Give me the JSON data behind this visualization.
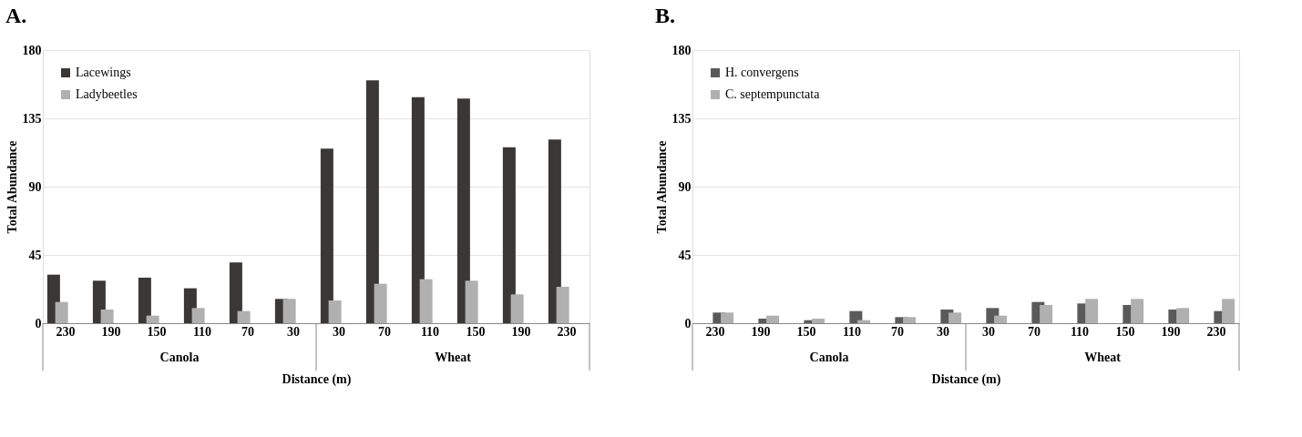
{
  "chart_data": [
    {
      "type": "bar",
      "title": "A.",
      "xlabel": "Distance (m)",
      "ylabel": "Total Abundance",
      "categories": [
        "230",
        "190",
        "150",
        "110",
        "70",
        "30",
        "30",
        "70",
        "110",
        "150",
        "190",
        "230"
      ],
      "annotations": [
        "Canola",
        "Wheat"
      ],
      "series": [
        {
          "name": "Lacewings",
          "color": "#3a3836",
          "values": [
            32,
            28,
            30,
            23,
            40,
            16,
            115,
            160,
            149,
            148,
            116,
            121
          ]
        },
        {
          "name": "Ladybeetles",
          "color": "#b0b0b0",
          "values": [
            14,
            9,
            5,
            10,
            8,
            16,
            15,
            26,
            29,
            28,
            19,
            24
          ]
        }
      ],
      "ylim": [
        0,
        180
      ],
      "yticks": [
        0,
        45,
        90,
        135,
        180
      ],
      "grid": "y",
      "legend": "top left"
    },
    {
      "type": "bar",
      "title": "B.",
      "xlabel": "Distance (m)",
      "ylabel": "Total Abundance",
      "categories": [
        "230",
        "190",
        "150",
        "110",
        "70",
        "30",
        "30",
        "70",
        "110",
        "150",
        "190",
        "230"
      ],
      "annotations": [
        "Canola",
        "Wheat"
      ],
      "series": [
        {
          "name": "H. convergens",
          "color": "#5a5a5a",
          "values": [
            7,
            3,
            2,
            8,
            4,
            9,
            10,
            14,
            13,
            12,
            9,
            8
          ]
        },
        {
          "name": "C. septempunctata",
          "color": "#b0b0b0",
          "values": [
            7,
            5,
            3,
            2,
            4,
            7,
            5,
            12,
            16,
            16,
            10,
            16
          ]
        }
      ],
      "ylim": [
        0,
        180
      ],
      "yticks": [
        0,
        45,
        90,
        135,
        180
      ],
      "grid": "y",
      "legend": "top left"
    }
  ]
}
